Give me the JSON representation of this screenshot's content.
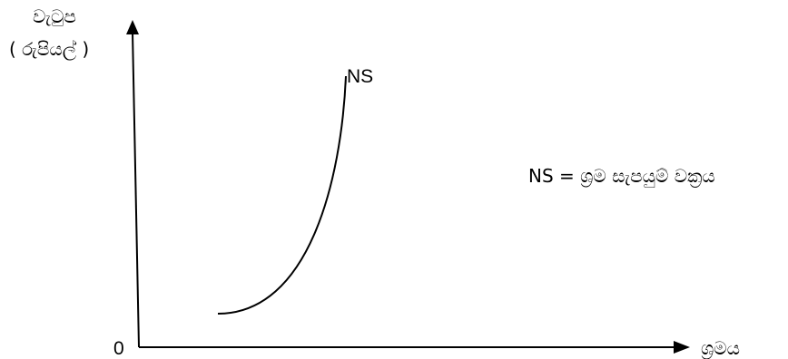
{
  "axes": {
    "y_title_line1": "වැටුප",
    "y_title_line2": "( රුපියල් )",
    "x_title": "ශ්‍රමය",
    "origin": "0"
  },
  "curve": {
    "label": "NS"
  },
  "legend": {
    "text": "NS = ශ්‍රම සැපයුම් වක්‍රය"
  },
  "colors": {
    "ink": "#000000",
    "background": "#ffffff"
  }
}
